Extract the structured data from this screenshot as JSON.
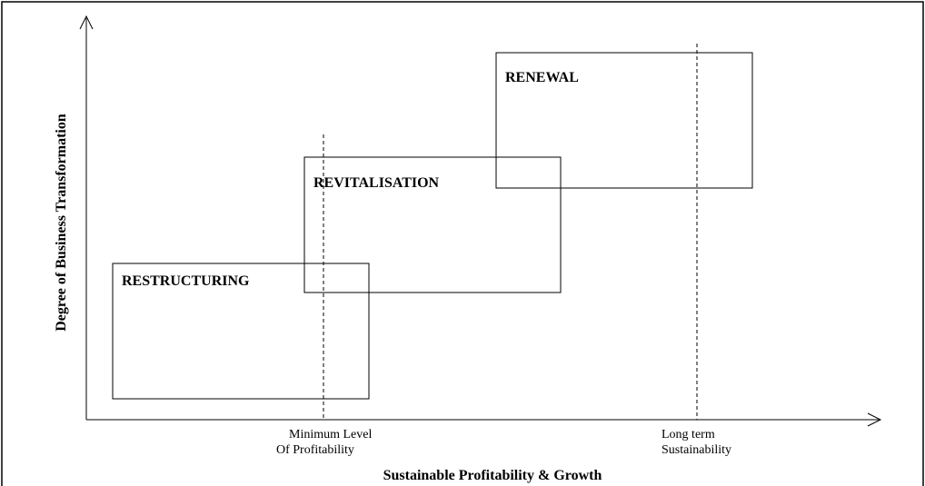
{
  "y_axis_label": "Degree of Business Transformation",
  "x_axis_label": "Sustainable Profitability & Growth",
  "stages": [
    {
      "label": "RESTRUCTURING"
    },
    {
      "label": "REVITALISATION"
    },
    {
      "label": "RENEWAL"
    }
  ],
  "markers": [
    {
      "lines": [
        "Minimum Level",
        "Of Profitability"
      ]
    },
    {
      "lines": [
        "Long term",
        "Sustainability"
      ]
    }
  ]
}
